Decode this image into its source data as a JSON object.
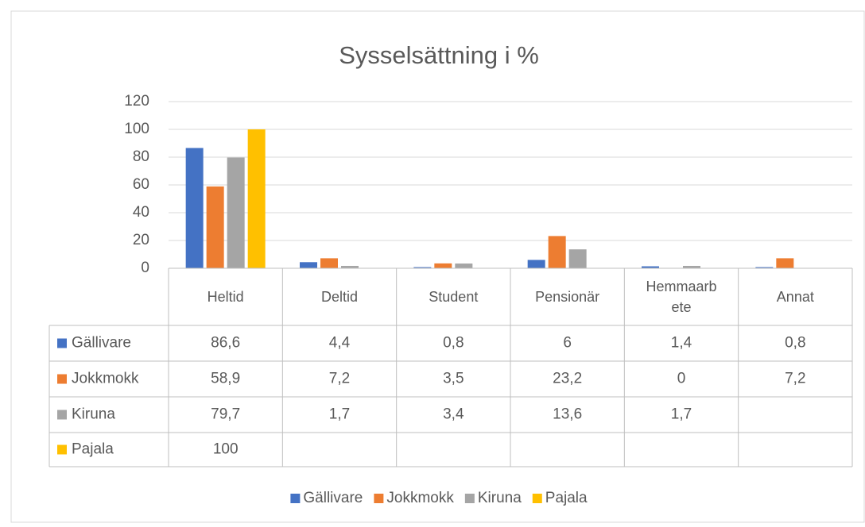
{
  "chart_data": {
    "type": "bar",
    "title": "Sysselsättning i %",
    "categories": [
      "Heltid",
      "Deltid",
      "Student",
      "Pensionär",
      "Hemmaarbete",
      "Annat"
    ],
    "series": [
      {
        "name": "Gällivare",
        "color": "#4472c4",
        "values": [
          86.6,
          4.4,
          0.8,
          6,
          1.4,
          0.8
        ],
        "value_labels": [
          "86,6",
          "4,4",
          "0,8",
          "6",
          "1,4",
          "0,8"
        ]
      },
      {
        "name": "Jokkmokk",
        "color": "#ed7d31",
        "values": [
          58.9,
          7.2,
          3.5,
          23.2,
          0,
          7.2
        ],
        "value_labels": [
          "58,9",
          "7,2",
          "3,5",
          "23,2",
          "0",
          "7,2"
        ]
      },
      {
        "name": "Kiruna",
        "color": "#a5a5a5",
        "values": [
          79.7,
          1.7,
          3.4,
          13.6,
          1.7,
          null
        ],
        "value_labels": [
          "79,7",
          "1,7",
          "3,4",
          "13,6",
          "1,7",
          null
        ]
      },
      {
        "name": "Pajala",
        "color": "#ffc000",
        "values": [
          100,
          null,
          null,
          null,
          null,
          null
        ],
        "value_labels": [
          "100",
          null,
          null,
          null,
          null,
          null
        ]
      }
    ],
    "ylim": [
      0,
      120
    ],
    "yticks": [
      0,
      20,
      40,
      60,
      80,
      100,
      120
    ],
    "grid": true,
    "legend": "bottom"
  }
}
